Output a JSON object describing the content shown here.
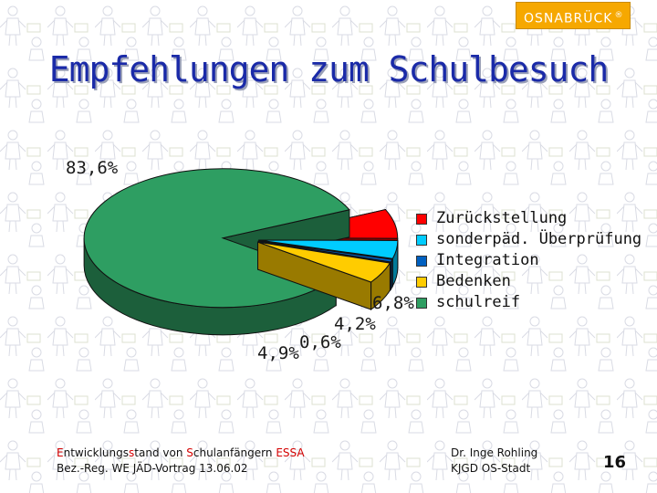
{
  "header": {
    "logo_text": "OSNABRÜCK",
    "logo_mark": "®"
  },
  "slide": {
    "title": "Empfehlungen zum Schulbesuch",
    "footer_line1_parts": [
      "E",
      "ntwicklungs",
      "s",
      "tand von ",
      "S",
      "chulanfängern ",
      "ESSA"
    ],
    "footer_line2": "Bez.-Reg. WE JÄD-Vortrag 13.06.02",
    "footer_author": "Dr. Inge Rohling",
    "footer_org": "KJGD OS-Stadt",
    "page_number": "16"
  },
  "chart_data": {
    "type": "pie",
    "style": "3d-exploded",
    "series": [
      {
        "name": "Zurückstellung",
        "value": 6.8,
        "label": "6,8%",
        "color": "#ff0000"
      },
      {
        "name": "sonderpäd. Überprüfung",
        "value": 4.2,
        "label": "4,2%",
        "color": "#00ccff"
      },
      {
        "name": "Integration",
        "value": 0.6,
        "label": "0,6%",
        "color": "#0060c0"
      },
      {
        "name": "Bedenken",
        "value": 4.9,
        "label": "4,9%",
        "color": "#ffcc00"
      },
      {
        "name": "schulreif",
        "value": 83.6,
        "label": "83,6%",
        "color": "#2e9e62"
      }
    ],
    "legend_position": "right"
  }
}
